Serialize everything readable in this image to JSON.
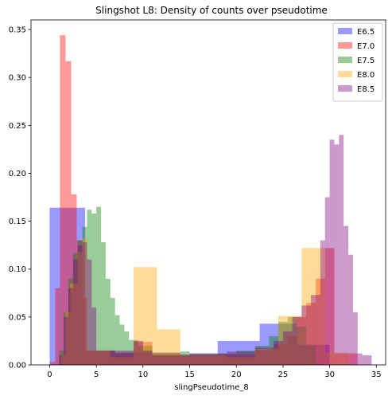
{
  "chart_data": {
    "type": "histogram",
    "title": "Slingshot L8: Density of counts over pseudotime",
    "xlabel": "slingPseudotime_8",
    "ylabel": "",
    "xlim": [
      -2,
      36
    ],
    "ylim": [
      0,
      0.36
    ],
    "xticks": [
      0,
      5,
      10,
      15,
      20,
      25,
      30,
      35
    ],
    "yticks": [
      0.0,
      0.05,
      0.1,
      0.15,
      0.2,
      0.25,
      0.3,
      0.35
    ],
    "grid": false,
    "legend_position": "top-right",
    "series": [
      {
        "name": "E6.5",
        "color": "#0000ff",
        "alpha": 0.4,
        "bins": [
          {
            "x0": 0.0,
            "x1": 3.8,
            "y": 0.164
          },
          {
            "x0": 3.8,
            "x1": 7.0,
            "y": 0.015
          },
          {
            "x0": 7.0,
            "x1": 10.5,
            "y": 0.013
          },
          {
            "x0": 10.5,
            "x1": 14.0,
            "y": 0.013
          },
          {
            "x0": 14.0,
            "x1": 18.0,
            "y": 0.011
          },
          {
            "x0": 18.0,
            "x1": 22.5,
            "y": 0.025
          },
          {
            "x0": 22.5,
            "x1": 26.5,
            "y": 0.043
          },
          {
            "x0": 26.5,
            "x1": 30.0,
            "y": 0.021
          }
        ]
      },
      {
        "name": "E7.0",
        "color": "#ff0000",
        "alpha": 0.4,
        "bins": [
          {
            "x0": 0.0,
            "x1": 0.6,
            "y": 0.003
          },
          {
            "x0": 0.6,
            "x1": 1.1,
            "y": 0.08
          },
          {
            "x0": 1.1,
            "x1": 1.7,
            "y": 0.344
          },
          {
            "x0": 1.7,
            "x1": 2.3,
            "y": 0.317
          },
          {
            "x0": 2.3,
            "x1": 2.9,
            "y": 0.178
          },
          {
            "x0": 2.9,
            "x1": 3.5,
            "y": 0.13
          },
          {
            "x0": 3.5,
            "x1": 4.0,
            "y": 0.07
          },
          {
            "x0": 4.0,
            "x1": 7.0,
            "y": 0.015
          },
          {
            "x0": 7.0,
            "x1": 9.0,
            "y": 0.012
          },
          {
            "x0": 9.0,
            "x1": 11.0,
            "y": 0.024
          },
          {
            "x0": 11.0,
            "x1": 14.0,
            "y": 0.012
          },
          {
            "x0": 14.0,
            "x1": 18.0,
            "y": 0.01
          },
          {
            "x0": 18.0,
            "x1": 22.0,
            "y": 0.011
          },
          {
            "x0": 22.0,
            "x1": 24.0,
            "y": 0.015
          },
          {
            "x0": 24.0,
            "x1": 25.5,
            "y": 0.022
          },
          {
            "x0": 25.5,
            "x1": 26.5,
            "y": 0.03
          },
          {
            "x0": 26.5,
            "x1": 27.5,
            "y": 0.05
          },
          {
            "x0": 27.5,
            "x1": 28.5,
            "y": 0.065
          },
          {
            "x0": 28.5,
            "x1": 29.5,
            "y": 0.09
          },
          {
            "x0": 29.5,
            "x1": 30.5,
            "y": 0.122
          },
          {
            "x0": 30.5,
            "x1": 33.0,
            "y": 0.012
          }
        ]
      },
      {
        "name": "E7.5",
        "color": "#008000",
        "alpha": 0.4,
        "bins": [
          {
            "x0": 1.0,
            "x1": 1.5,
            "y": 0.015
          },
          {
            "x0": 1.5,
            "x1": 2.0,
            "y": 0.055
          },
          {
            "x0": 2.0,
            "x1": 2.5,
            "y": 0.09
          },
          {
            "x0": 2.5,
            "x1": 3.0,
            "y": 0.117
          },
          {
            "x0": 3.0,
            "x1": 3.5,
            "y": 0.13
          },
          {
            "x0": 3.5,
            "x1": 4.0,
            "y": 0.144
          },
          {
            "x0": 4.0,
            "x1": 4.5,
            "y": 0.162
          },
          {
            "x0": 4.5,
            "x1": 5.0,
            "y": 0.158
          },
          {
            "x0": 5.0,
            "x1": 5.5,
            "y": 0.165
          },
          {
            "x0": 5.5,
            "x1": 6.0,
            "y": 0.128
          },
          {
            "x0": 6.0,
            "x1": 6.5,
            "y": 0.09
          },
          {
            "x0": 6.5,
            "x1": 7.0,
            "y": 0.07
          },
          {
            "x0": 7.0,
            "x1": 7.5,
            "y": 0.052
          },
          {
            "x0": 7.5,
            "x1": 8.0,
            "y": 0.042
          },
          {
            "x0": 8.0,
            "x1": 8.5,
            "y": 0.035
          },
          {
            "x0": 8.5,
            "x1": 9.5,
            "y": 0.026
          },
          {
            "x0": 9.5,
            "x1": 11.0,
            "y": 0.02
          },
          {
            "x0": 11.0,
            "x1": 14.0,
            "y": 0.012
          },
          {
            "x0": 14.0,
            "x1": 15.0,
            "y": 0.014
          },
          {
            "x0": 15.0,
            "x1": 20.0,
            "y": 0.012
          },
          {
            "x0": 20.0,
            "x1": 22.0,
            "y": 0.015
          },
          {
            "x0": 22.0,
            "x1": 23.5,
            "y": 0.02
          },
          {
            "x0": 23.5,
            "x1": 24.5,
            "y": 0.03
          },
          {
            "x0": 24.5,
            "x1": 25.5,
            "y": 0.045
          },
          {
            "x0": 25.5,
            "x1": 26.5,
            "y": 0.05
          },
          {
            "x0": 26.5,
            "x1": 27.5,
            "y": 0.04
          },
          {
            "x0": 27.5,
            "x1": 28.5,
            "y": 0.02
          }
        ]
      },
      {
        "name": "E8.0",
        "color": "#ffa500",
        "alpha": 0.4,
        "bins": [
          {
            "x0": 1.2,
            "x1": 1.7,
            "y": 0.01
          },
          {
            "x0": 1.7,
            "x1": 2.2,
            "y": 0.055
          },
          {
            "x0": 2.2,
            "x1": 3.0,
            "y": 0.085
          },
          {
            "x0": 3.0,
            "x1": 3.5,
            "y": 0.118
          },
          {
            "x0": 3.5,
            "x1": 4.0,
            "y": 0.132
          },
          {
            "x0": 4.0,
            "x1": 6.5,
            "y": 0.015
          },
          {
            "x0": 6.5,
            "x1": 9.0,
            "y": 0.008
          },
          {
            "x0": 9.0,
            "x1": 11.5,
            "y": 0.102
          },
          {
            "x0": 11.5,
            "x1": 14.0,
            "y": 0.037
          },
          {
            "x0": 14.0,
            "x1": 19.0,
            "y": 0.01
          },
          {
            "x0": 19.0,
            "x1": 22.0,
            "y": 0.008
          },
          {
            "x0": 22.0,
            "x1": 24.5,
            "y": 0.017
          },
          {
            "x0": 24.5,
            "x1": 27.0,
            "y": 0.051
          },
          {
            "x0": 27.0,
            "x1": 29.5,
            "y": 0.122
          },
          {
            "x0": 29.5,
            "x1": 32.0,
            "y": 0.013
          }
        ]
      },
      {
        "name": "E8.5",
        "color": "#800080",
        "alpha": 0.4,
        "bins": [
          {
            "x0": 1.0,
            "x1": 1.5,
            "y": 0.01
          },
          {
            "x0": 1.5,
            "x1": 2.0,
            "y": 0.05
          },
          {
            "x0": 2.0,
            "x1": 2.5,
            "y": 0.08
          },
          {
            "x0": 2.5,
            "x1": 3.0,
            "y": 0.11
          },
          {
            "x0": 3.0,
            "x1": 3.5,
            "y": 0.125
          },
          {
            "x0": 3.5,
            "x1": 4.0,
            "y": 0.128
          },
          {
            "x0": 4.0,
            "x1": 4.5,
            "y": 0.11
          },
          {
            "x0": 4.5,
            "x1": 5.0,
            "y": 0.06
          },
          {
            "x0": 5.0,
            "x1": 9.0,
            "y": 0.015
          },
          {
            "x0": 9.0,
            "x1": 10.0,
            "y": 0.025
          },
          {
            "x0": 10.0,
            "x1": 11.0,
            "y": 0.015
          },
          {
            "x0": 11.0,
            "x1": 15.0,
            "y": 0.01
          },
          {
            "x0": 15.0,
            "x1": 19.0,
            "y": 0.012
          },
          {
            "x0": 19.0,
            "x1": 22.0,
            "y": 0.014
          },
          {
            "x0": 22.0,
            "x1": 24.0,
            "y": 0.018
          },
          {
            "x0": 24.0,
            "x1": 25.0,
            "y": 0.025
          },
          {
            "x0": 25.0,
            "x1": 26.0,
            "y": 0.035
          },
          {
            "x0": 26.0,
            "x1": 27.0,
            "y": 0.05
          },
          {
            "x0": 27.0,
            "x1": 28.0,
            "y": 0.062
          },
          {
            "x0": 28.0,
            "x1": 29.0,
            "y": 0.073
          },
          {
            "x0": 29.0,
            "x1": 29.5,
            "y": 0.13
          },
          {
            "x0": 29.5,
            "x1": 30.0,
            "y": 0.175
          },
          {
            "x0": 30.0,
            "x1": 30.5,
            "y": 0.235
          },
          {
            "x0": 30.5,
            "x1": 31.0,
            "y": 0.23
          },
          {
            "x0": 31.0,
            "x1": 31.5,
            "y": 0.24
          },
          {
            "x0": 31.5,
            "x1": 32.0,
            "y": 0.145
          },
          {
            "x0": 32.0,
            "x1": 32.5,
            "y": 0.115
          },
          {
            "x0": 32.5,
            "x1": 33.0,
            "y": 0.055
          },
          {
            "x0": 33.0,
            "x1": 33.5,
            "y": 0.012
          },
          {
            "x0": 33.5,
            "x1": 34.5,
            "y": 0.01
          }
        ]
      }
    ]
  }
}
